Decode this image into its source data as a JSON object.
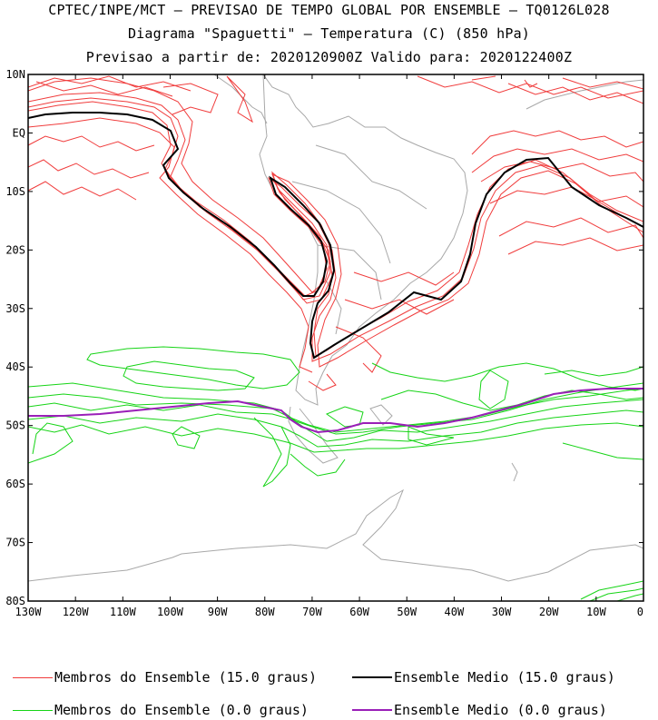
{
  "header": {
    "line1": "CPTEC/INPE/MCT — PREVISAO DE TEMPO GLOBAL POR ENSEMBLE — TQ0126L028",
    "line2": "Diagrama \"Spaguetti\" — Temperatura (C) (850 hPa)",
    "line3": "Previsao a partir de: 2020120900Z  Valido para: 2020122400Z"
  },
  "axes": {
    "lat_labels": [
      "10N",
      "EQ",
      "10S",
      "20S",
      "30S",
      "40S",
      "50S",
      "60S",
      "70S",
      "80S"
    ],
    "lon_labels": [
      "130W",
      "120W",
      "110W",
      "100W",
      "90W",
      "80W",
      "70W",
      "60W",
      "50W",
      "40W",
      "30W",
      "20W",
      "10W",
      "0"
    ],
    "lat_range": [
      -80,
      10
    ],
    "lon_range": [
      -130,
      0
    ]
  },
  "colors": {
    "members_15": "#f03c3c",
    "mean_15": "#000000",
    "members_0": "#16d416",
    "mean_0": "#9a1fb8",
    "coast": "#a8a8a8"
  },
  "legend": {
    "members_15": "Membros do Ensemble (15.0 graus)",
    "mean_15": "Ensemble Medio (15.0 graus)",
    "members_0": "Membros do Ensemble (0.0 graus)",
    "mean_0": "Ensemble Medio (0.0 graus)"
  }
}
